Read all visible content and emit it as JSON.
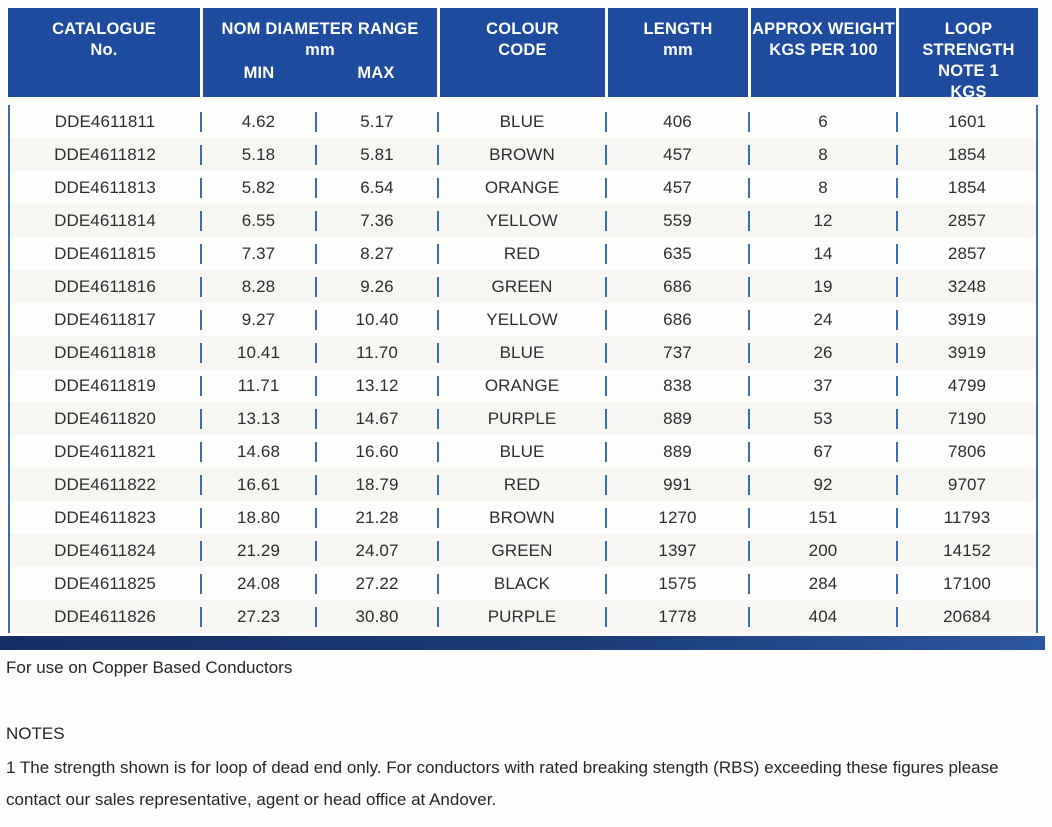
{
  "colors": {
    "header_blue": "#1d4c9f",
    "grid_blue": "#3a6cb8",
    "bottom_bar_navy": "#1a3c76",
    "text_dark": "#262626"
  },
  "header": {
    "catalogue": {
      "line1": "CATALOGUE",
      "line2": "No."
    },
    "diameter": {
      "line1": "NOM DIAMETER RANGE",
      "line2": "mm",
      "min": "MIN",
      "max": "MAX"
    },
    "colour": {
      "line1": "COLOUR",
      "line2": "CODE"
    },
    "length": {
      "line1": "LENGTH",
      "line2": "mm"
    },
    "weight": {
      "line1": "APPROX WEIGHT",
      "line2": "KGS PER 100"
    },
    "loop": {
      "line1": "LOOP STRENGTH",
      "line2": "NOTE 1",
      "line3": "KGS"
    }
  },
  "rows": [
    {
      "catalogue": "DDE4611811",
      "min": "4.62",
      "max": "5.17",
      "colour": "BLUE",
      "length": "406",
      "weight": "6",
      "loop": "1601"
    },
    {
      "catalogue": "DDE4611812",
      "min": "5.18",
      "max": "5.81",
      "colour": "BROWN",
      "length": "457",
      "weight": "8",
      "loop": "1854"
    },
    {
      "catalogue": "DDE4611813",
      "min": "5.82",
      "max": "6.54",
      "colour": "ORANGE",
      "length": "457",
      "weight": "8",
      "loop": "1854"
    },
    {
      "catalogue": "DDE4611814",
      "min": "6.55",
      "max": "7.36",
      "colour": "YELLOW",
      "length": "559",
      "weight": "12",
      "loop": "2857"
    },
    {
      "catalogue": "DDE4611815",
      "min": "7.37",
      "max": "8.27",
      "colour": "RED",
      "length": "635",
      "weight": "14",
      "loop": "2857"
    },
    {
      "catalogue": "DDE4611816",
      "min": "8.28",
      "max": "9.26",
      "colour": "GREEN",
      "length": "686",
      "weight": "19",
      "loop": "3248"
    },
    {
      "catalogue": "DDE4611817",
      "min": "9.27",
      "max": "10.40",
      "colour": "YELLOW",
      "length": "686",
      "weight": "24",
      "loop": "3919"
    },
    {
      "catalogue": "DDE4611818",
      "min": "10.41",
      "max": "11.70",
      "colour": "BLUE",
      "length": "737",
      "weight": "26",
      "loop": "3919"
    },
    {
      "catalogue": "DDE4611819",
      "min": "11.71",
      "max": "13.12",
      "colour": "ORANGE",
      "length": "838",
      "weight": "37",
      "loop": "4799"
    },
    {
      "catalogue": "DDE4611820",
      "min": "13.13",
      "max": "14.67",
      "colour": "PURPLE",
      "length": "889",
      "weight": "53",
      "loop": "7190"
    },
    {
      "catalogue": "DDE4611821",
      "min": "14.68",
      "max": "16.60",
      "colour": "BLUE",
      "length": "889",
      "weight": "67",
      "loop": "7806"
    },
    {
      "catalogue": "DDE4611822",
      "min": "16.61",
      "max": "18.79",
      "colour": "RED",
      "length": "991",
      "weight": "92",
      "loop": "9707"
    },
    {
      "catalogue": "DDE4611823",
      "min": "18.80",
      "max": "21.28",
      "colour": "BROWN",
      "length": "1270",
      "weight": "151",
      "loop": "11793"
    },
    {
      "catalogue": "DDE4611824",
      "min": "21.29",
      "max": "24.07",
      "colour": "GREEN",
      "length": "1397",
      "weight": "200",
      "loop": "14152"
    },
    {
      "catalogue": "DDE4611825",
      "min": "24.08",
      "max": "27.22",
      "colour": "BLACK",
      "length": "1575",
      "weight": "284",
      "loop": "17100"
    },
    {
      "catalogue": "DDE4611826",
      "min": "27.23",
      "max": "30.80",
      "colour": "PURPLE",
      "length": "1778",
      "weight": "404",
      "loop": "20684"
    }
  ],
  "footer": {
    "usage_note": "For use on Copper Based Conductors",
    "notes_title": "NOTES",
    "note_1": "1  The strength shown is for loop of dead end only.  For conductors with rated breaking stength  (RBS) exceeding these figures please contact our sales representative, agent or head office at Andover."
  }
}
